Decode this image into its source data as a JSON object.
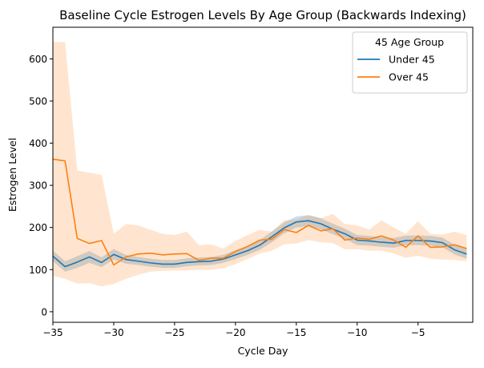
{
  "chart_data": {
    "type": "line",
    "title": "Baseline Cycle Estrogen Levels By Age Group (Backwards Indexing)",
    "xlabel": "Cycle Day",
    "ylabel": "Estrogen Level",
    "xlim": [
      -35,
      -0.5
    ],
    "ylim": [
      -25,
      675
    ],
    "x_ticks": [
      -35,
      -30,
      -25,
      -20,
      -15,
      -10,
      -5
    ],
    "x_tick_labels": [
      "−35",
      "−30",
      "−25",
      "−20",
      "−15",
      "−10",
      "−5"
    ],
    "y_ticks": [
      0,
      100,
      200,
      300,
      400,
      500,
      600
    ],
    "y_tick_labels": [
      "0",
      "100",
      "200",
      "300",
      "400",
      "500",
      "600"
    ],
    "grid": false,
    "legend": {
      "title": "45 Age Group",
      "placement": "top-right",
      "entries": [
        "Under 45",
        "Over 45"
      ]
    },
    "x": [
      -35,
      -34,
      -33,
      -32,
      -31,
      -30,
      -29,
      -28,
      -27,
      -26,
      -25,
      -24,
      -23,
      -22,
      -21,
      -20,
      -19,
      -18,
      -17,
      -16,
      -15,
      -14,
      -13,
      -12,
      -11,
      -10,
      -9,
      -8,
      -7,
      -6,
      -5,
      -4,
      -3,
      -2,
      -1
    ],
    "series": [
      {
        "name": "Under 45",
        "color": "#1f77b4",
        "values": [
          132,
          107,
          118,
          130,
          117,
          136,
          124,
          120,
          116,
          113,
          113,
          117,
          119,
          120,
          125,
          135,
          145,
          158,
          178,
          199,
          213,
          216,
          209,
          196,
          185,
          170,
          168,
          165,
          163,
          169,
          169,
          168,
          164,
          147,
          137
        ],
        "ci_lower": [
          120,
          95,
          104,
          116,
          106,
          124,
          114,
          111,
          107,
          104,
          104,
          108,
          110,
          111,
          116,
          125,
          135,
          147,
          165,
          186,
          200,
          203,
          196,
          184,
          173,
          158,
          157,
          154,
          152,
          158,
          158,
          157,
          153,
          136,
          126
        ],
        "ci_upper": [
          145,
          120,
          132,
          144,
          129,
          149,
          135,
          130,
          126,
          123,
          123,
          127,
          129,
          130,
          135,
          146,
          156,
          170,
          191,
          212,
          226,
          229,
          222,
          209,
          197,
          182,
          180,
          177,
          175,
          181,
          181,
          180,
          176,
          159,
          149
        ]
      },
      {
        "name": "Over 45",
        "color": "#ff7f0e",
        "values": [
          362,
          358,
          174,
          162,
          169,
          111,
          130,
          137,
          139,
          135,
          137,
          138,
          122,
          127,
          127,
          143,
          155,
          170,
          172,
          195,
          188,
          205,
          192,
          197,
          170,
          175,
          172,
          180,
          170,
          153,
          180,
          153,
          154,
          159,
          150
        ],
        "ci_lower": [
          85,
          78,
          67,
          68,
          60,
          66,
          78,
          88,
          95,
          97,
          98,
          98,
          99,
          100,
          103,
          113,
          125,
          138,
          145,
          160,
          162,
          170,
          165,
          163,
          148,
          148,
          145,
          145,
          138,
          128,
          133,
          126,
          124,
          123,
          120
        ],
        "ci_upper": [
          640,
          640,
          335,
          330,
          325,
          185,
          208,
          205,
          195,
          185,
          182,
          190,
          158,
          160,
          150,
          168,
          182,
          195,
          190,
          217,
          218,
          230,
          222,
          232,
          208,
          205,
          195,
          217,
          200,
          185,
          215,
          185,
          183,
          190,
          182
        ]
      }
    ]
  }
}
